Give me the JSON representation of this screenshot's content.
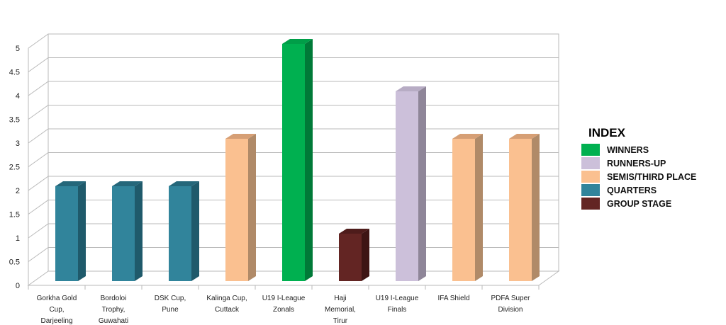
{
  "chart_data": {
    "type": "bar",
    "title": "",
    "xlabel": "",
    "ylabel": "",
    "ylim": [
      0,
      5
    ],
    "yticks": [
      "0",
      "0.5",
      "1",
      "1.5",
      "2",
      "2.5",
      "3",
      "3.5",
      "4",
      "4.5",
      "5"
    ],
    "grid": true,
    "legend_placement": "right",
    "categories": [
      [
        "Gorkha Gold",
        "Cup,",
        "Darjeeling"
      ],
      [
        "Bordoloi",
        "Trophy,",
        "Guwahati"
      ],
      [
        "DSK Cup,",
        "Pune"
      ],
      [
        "Kalinga Cup,",
        "Cuttack"
      ],
      [
        "U19 I-League",
        "Zonals"
      ],
      [
        "Haji",
        "Memorial,",
        "Tirur"
      ],
      [
        "U19 I-League",
        "Finals"
      ],
      [
        "IFA Shield"
      ],
      [
        "PDFA Super",
        "Division"
      ]
    ],
    "values": [
      2,
      2,
      2,
      3,
      5,
      1,
      4,
      3,
      3
    ],
    "bar_status": [
      "QUARTERS",
      "QUARTERS",
      "QUARTERS",
      "SEMIS/THIRD PLACE",
      "WINNERS",
      "GROUP STAGE",
      "RUNNERS-UP",
      "SEMIS/THIRD PLACE",
      "SEMIS/THIRD PLACE"
    ]
  },
  "legend": {
    "title": "INDEX",
    "items": [
      {
        "label": "WINNERS",
        "color": "#00B050",
        "side": "#007A38",
        "top": "#009E48"
      },
      {
        "label": "RUNNERS-UP",
        "color": "#CCC0DA",
        "side": "#8F8699",
        "top": "#B7ACC4"
      },
      {
        "label": "SEMIS/THIRD PLACE",
        "color": "#FAC090",
        "side": "#B08A68",
        "top": "#D69F75"
      },
      {
        "label": "QUARTERS",
        "color": "#31849B",
        "side": "#1F5A6B",
        "top": "#25677A"
      },
      {
        "label": "GROUP STAGE",
        "color": "#632523",
        "side": "#3E1514",
        "top": "#4E1C1B"
      }
    ]
  }
}
